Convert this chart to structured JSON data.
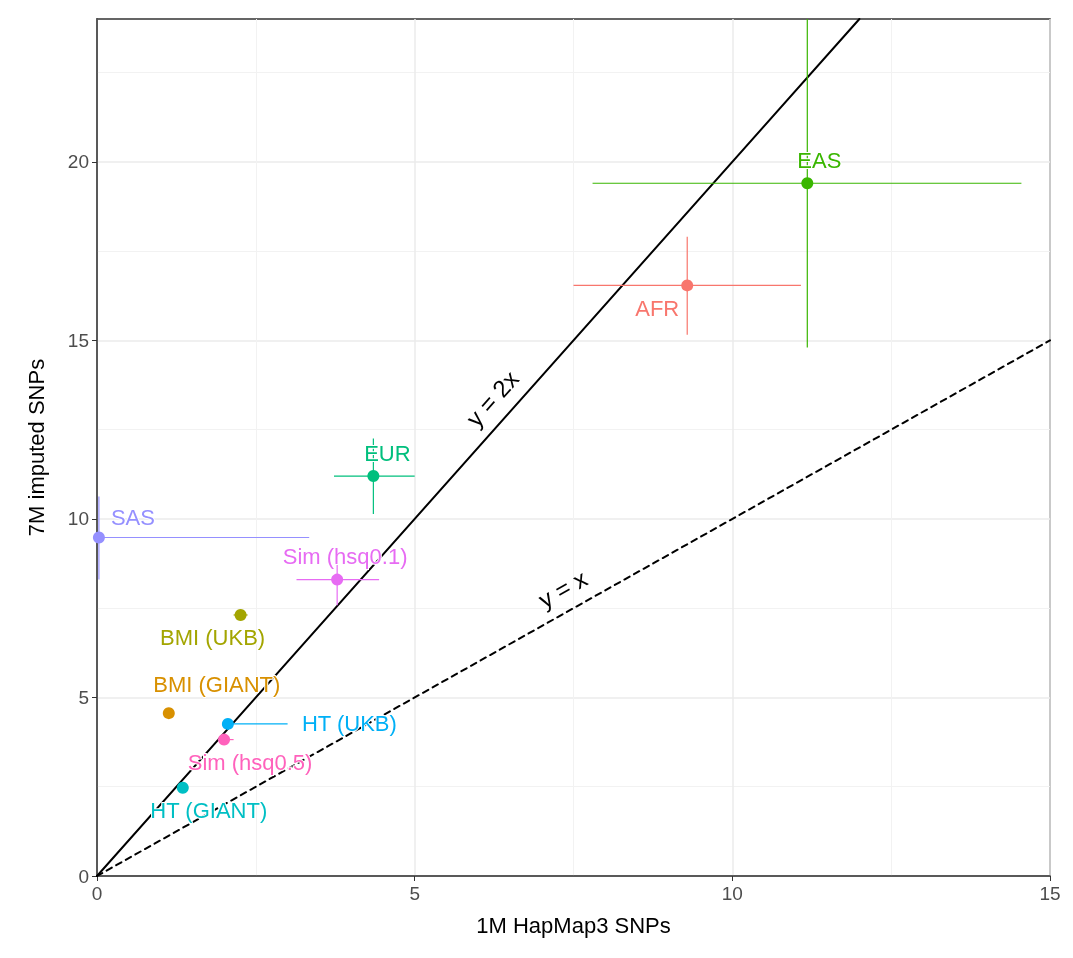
{
  "chart_data": {
    "type": "scatter",
    "xlabel": "1M HapMap3 SNPs",
    "ylabel": "7M imputed SNPs",
    "xlim": [
      0,
      15
    ],
    "xticks": [
      0,
      5,
      10,
      15
    ],
    "ylim": [
      0,
      24
    ],
    "yticks": [
      0,
      5,
      10,
      15,
      20
    ],
    "grid": true,
    "legend": false,
    "marker": "circle",
    "series": [
      {
        "name": "AFR",
        "color": "#f8766d",
        "x": [
          9.29
        ],
        "values": [
          16.54
        ],
        "xerrors": [
          [
            7.5,
            11.08
          ]
        ],
        "errors": [
          [
            15.16,
            17.9
          ]
        ]
      },
      {
        "name": "BMI (GIANT)",
        "color": "#d89000",
        "x": [
          1.13
        ],
        "values": [
          4.56
        ]
      },
      {
        "name": "BMI (UKB)",
        "color": "#a3a500",
        "x": [
          2.26
        ],
        "values": [
          7.31
        ],
        "xerrors": [
          [
            2.15,
            2.37
          ]
        ]
      },
      {
        "name": "EAS",
        "color": "#39b600",
        "x": [
          11.18
        ],
        "values": [
          19.4
        ],
        "xerrors": [
          [
            7.8,
            14.55
          ]
        ],
        "errors": [
          [
            14.8,
            24
          ]
        ]
      },
      {
        "name": "EUR",
        "color": "#00bf7d",
        "x": [
          4.35
        ],
        "values": [
          11.2
        ],
        "xerrors": [
          [
            3.73,
            5.0
          ]
        ],
        "errors": [
          [
            10.14,
            12.25
          ]
        ]
      },
      {
        "name": "HT (GIANT)",
        "color": "#00bfc4",
        "x": [
          1.35
        ],
        "values": [
          2.47
        ]
      },
      {
        "name": "HT (UKB)",
        "color": "#00b0f6",
        "x": [
          2.06
        ],
        "values": [
          4.26
        ],
        "xerrors": [
          [
            2.06,
            3.0
          ]
        ]
      },
      {
        "name": "SAS",
        "color": "#9590ff",
        "x": [
          0.03
        ],
        "values": [
          9.48
        ],
        "xerrors": [
          [
            0,
            3.34
          ]
        ],
        "errors": [
          [
            8.3,
            10.63
          ]
        ]
      },
      {
        "name": "Sim (hsq0.1)",
        "color": "#e76bf3",
        "x": [
          3.78
        ],
        "values": [
          8.3
        ],
        "xerrors": [
          [
            3.14,
            4.44
          ]
        ],
        "errors": [
          [
            7.58,
            9.0
          ]
        ]
      },
      {
        "name": "Sim (hsq0.5)",
        "color": "#ff62bc",
        "x": [
          2.0
        ],
        "values": [
          3.82
        ],
        "xerrors": [
          [
            1.9,
            2.15
          ]
        ]
      },
      {
        "type": "line",
        "color": "#000000",
        "line_style": "solid",
        "marker": "none",
        "x": [
          0,
          12
        ],
        "values": [
          0,
          24
        ]
      },
      {
        "type": "line",
        "color": "#000000",
        "line_style": "dashed",
        "marker": "none",
        "x": [
          0,
          15
        ],
        "values": [
          0,
          15
        ]
      }
    ],
    "annotations": [
      "y = 2x",
      "y = x"
    ]
  }
}
